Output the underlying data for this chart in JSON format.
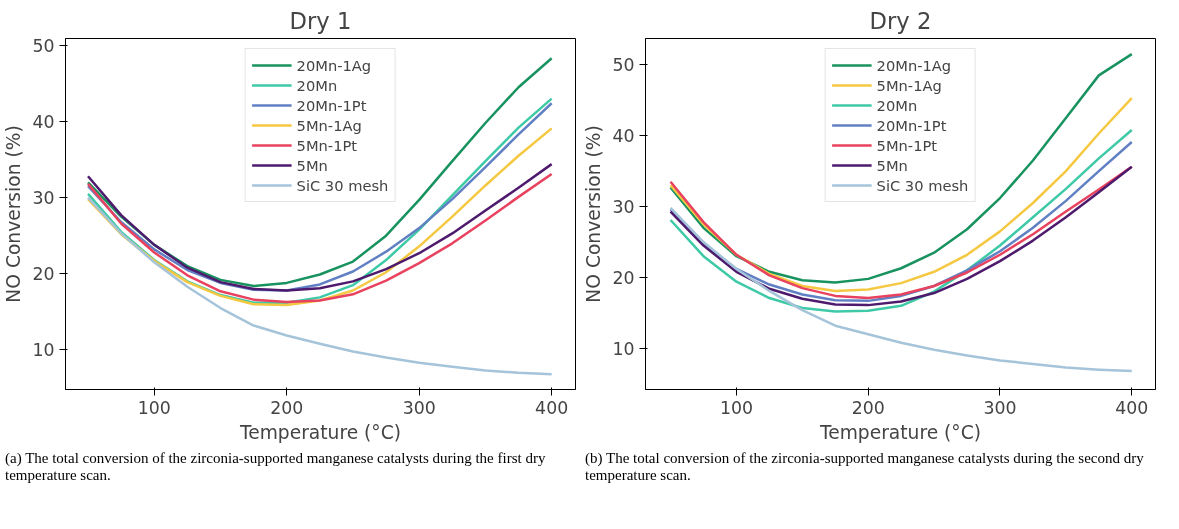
{
  "chart_data": [
    {
      "type": "line",
      "title": "Dry 1",
      "xlabel": "Temperature (°C)",
      "ylabel": "NO Conversion (%)",
      "x": [
        50,
        75,
        100,
        125,
        150,
        175,
        200,
        225,
        250,
        275,
        300,
        325,
        350,
        375,
        400
      ],
      "xlim": [
        33,
        418
      ],
      "ylim": [
        4.8,
        50.9
      ],
      "xticks": [
        100,
        200,
        300,
        400
      ],
      "yticks": [
        10,
        20,
        30,
        40,
        50
      ],
      "grid": false,
      "legend": "top",
      "marker": "none",
      "line_style": "solid",
      "annotations": [
        "(a) The total conversion of the zirconia-supported manganese catalysts during the first dry temperature scan."
      ],
      "series": [
        {
          "name": "20Mn-1Ag",
          "color": "#18935f",
          "values": [
            32,
            27.5,
            23.8,
            21,
            19.2,
            18.4,
            18.8,
            19.9,
            21.6,
            25,
            29.7,
            34.8,
            39.8,
            44.5,
            48.3
          ]
        },
        {
          "name": "20Mn",
          "color": "#3ec9a7",
          "values": [
            30.5,
            25.5,
            21.8,
            19,
            17.2,
            16.2,
            16.2,
            16.9,
            18.5,
            21.8,
            25.8,
            30.3,
            34.8,
            39.2,
            43
          ]
        },
        {
          "name": "20Mn-1Pt",
          "color": "#6180c4",
          "values": [
            31.5,
            26.8,
            23.2,
            20.5,
            18.8,
            17.9,
            17.8,
            18.6,
            20.3,
            22.9,
            26,
            29.8,
            34,
            38.3,
            42.4
          ]
        },
        {
          "name": "5Mn-1Ag",
          "color": "#f5c842",
          "values": [
            29.8,
            25.2,
            21.7,
            18.9,
            17.1,
            16,
            15.9,
            16.5,
            17.8,
            20.2,
            23.6,
            27.5,
            31.6,
            35.5,
            39.1
          ]
        },
        {
          "name": "5Mn-1Pt",
          "color": "#e8425f",
          "values": [
            31.8,
            26.6,
            22.8,
            19.8,
            17.7,
            16.6,
            16.3,
            16.5,
            17.3,
            19.1,
            21.4,
            24,
            27,
            30.1,
            33.1
          ]
        },
        {
          "name": "5Mn",
          "color": "#4e1a6e",
          "values": [
            32.8,
            27.7,
            23.8,
            20.8,
            18.9,
            18,
            17.8,
            18.1,
            19,
            20.6,
            22.7,
            25.3,
            28.3,
            31.3,
            34.4
          ]
        },
        {
          "name": "SiC 30 mesh",
          "color": "#a5c4da",
          "values": [
            30,
            25.3,
            21.5,
            18.3,
            15.5,
            13.2,
            11.9,
            10.8,
            9.8,
            9,
            8.3,
            7.8,
            7.3,
            7,
            6.8
          ]
        }
      ]
    },
    {
      "type": "line",
      "title": "Dry 2",
      "xlabel": "Temperature (°C)",
      "ylabel": "NO Conversion (%)",
      "x": [
        50,
        75,
        100,
        125,
        150,
        175,
        200,
        225,
        250,
        275,
        300,
        325,
        350,
        375,
        400
      ],
      "xlim": [
        31,
        418
      ],
      "ylim": [
        4.2,
        53.7
      ],
      "xticks": [
        100,
        200,
        300,
        400
      ],
      "yticks": [
        10,
        20,
        30,
        40,
        50
      ],
      "grid": false,
      "legend": "top",
      "marker": "none",
      "line_style": "solid",
      "annotations": [
        "(b) The total conversion of the zirconia-supported manganese catalysts during the second dry temperature scan."
      ],
      "series": [
        {
          "name": "20Mn-1Ag",
          "color": "#18935f",
          "values": [
            32.7,
            27,
            23,
            20.8,
            19.6,
            19.3,
            19.8,
            21.3,
            23.5,
            26.8,
            31.2,
            36.5,
            42.5,
            48.5,
            51.5
          ]
        },
        {
          "name": "5Mn-1Ag",
          "color": "#f5c842",
          "values": [
            33,
            27.5,
            23.2,
            20.5,
            18.8,
            18.1,
            18.3,
            19.2,
            20.8,
            23.2,
            26.5,
            30.5,
            35,
            40.3,
            45.3
          ]
        },
        {
          "name": "20Mn",
          "color": "#3ec9a7",
          "values": [
            28.1,
            23,
            19.4,
            17.1,
            15.7,
            15.2,
            15.3,
            16,
            18,
            21,
            24.5,
            28.5,
            32.5,
            36.8,
            40.8
          ]
        },
        {
          "name": "20Mn-1Pt",
          "color": "#6180c4",
          "values": [
            29.6,
            24.8,
            21.2,
            19,
            17.6,
            16.8,
            16.7,
            17.4,
            18.8,
            21,
            23.7,
            27,
            30.8,
            35,
            39.1
          ]
        },
        {
          "name": "5Mn-1Pt",
          "color": "#e8425f",
          "values": [
            33.5,
            27.8,
            23.2,
            20.3,
            18.5,
            17.4,
            17.1,
            17.6,
            18.8,
            20.7,
            23.2,
            26.1,
            29.3,
            32.4,
            35.6
          ]
        },
        {
          "name": "5Mn",
          "color": "#4e1a6e",
          "values": [
            29.3,
            24.5,
            20.8,
            18.4,
            17,
            16.2,
            16.1,
            16.6,
            17.8,
            19.8,
            22.3,
            25.2,
            28.5,
            32,
            35.6
          ]
        },
        {
          "name": "SiC 30 mesh",
          "color": "#a5c4da",
          "values": [
            29.8,
            25,
            21.2,
            18.1,
            15.4,
            13.2,
            12,
            10.8,
            9.8,
            9,
            8.3,
            7.8,
            7.3,
            7,
            6.8
          ]
        }
      ]
    }
  ]
}
